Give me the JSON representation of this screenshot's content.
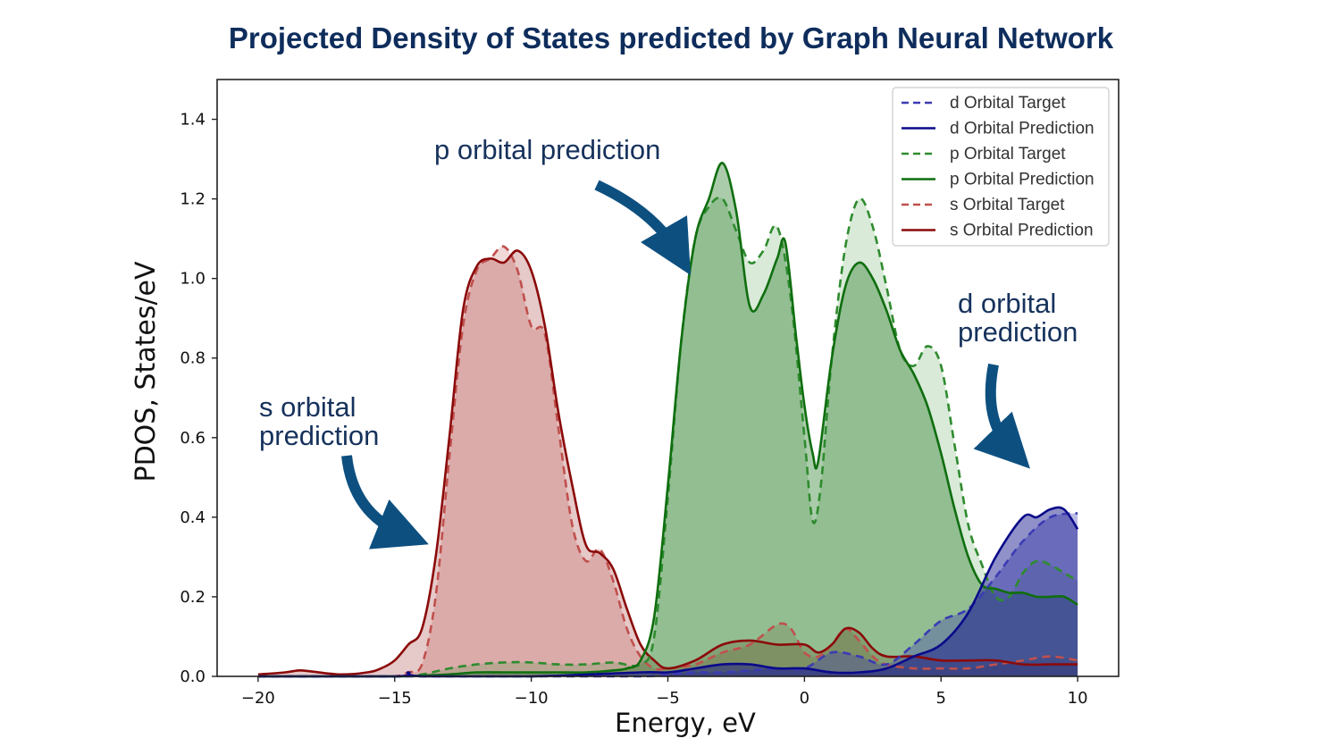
{
  "slide_title": "Projected Density of States predicted by Graph Neural Network",
  "annotations": {
    "p": [
      "p orbital prediction"
    ],
    "s": [
      "s orbital",
      "prediction"
    ],
    "d": [
      "d orbital",
      "prediction"
    ]
  },
  "colors": {
    "d_target": "#3b3bb3",
    "d_pred": "#0a0a8a",
    "p_target": "#2e8b2e",
    "p_pred": "#0f6e0f",
    "s_target": "#c0504d",
    "s_pred": "#8b0a0a",
    "arrow": "#0d5080",
    "title": "#0e2d5c"
  },
  "chart_data": {
    "type": "line",
    "title": "",
    "xlabel": "Energy, eV",
    "ylabel": "PDOS, States/eV",
    "xlim": [
      -21.5,
      11.5
    ],
    "ylim": [
      0,
      1.5
    ],
    "xticks": [
      -20,
      -15,
      -10,
      -5,
      0,
      5,
      10
    ],
    "yticks": [
      0.0,
      0.2,
      0.4,
      0.6,
      0.8,
      1.0,
      1.2,
      1.4
    ],
    "ytick_labels": [
      "0.0",
      "0.2",
      "0.4",
      "0.6",
      "0.8",
      "1.0",
      "1.2",
      "1.4"
    ],
    "xtick_labels": [
      "−20",
      "−15",
      "−10",
      "−5",
      "0",
      "5",
      "10"
    ],
    "legend_position": "top-right",
    "series": [
      {
        "name": "d Orbital Target",
        "key": "d_target",
        "style": "dashed",
        "x": [
          -20,
          -15,
          -10,
          -6,
          -5,
          -4,
          -3,
          -2,
          -1,
          0,
          1,
          2,
          3,
          4,
          5,
          6,
          7,
          8,
          9,
          10
        ],
        "y": [
          0,
          0,
          0,
          0,
          0.005,
          0.01,
          0.01,
          0.015,
          0.02,
          0.02,
          0.06,
          0.05,
          0.03,
          0.08,
          0.14,
          0.17,
          0.25,
          0.34,
          0.4,
          0.41
        ]
      },
      {
        "name": "d Orbital Prediction",
        "key": "d_pred",
        "style": "solid",
        "x": [
          -20,
          -15,
          -14.5,
          -14,
          -10,
          -6,
          -5,
          -4,
          -3,
          -2,
          -1,
          0,
          1,
          2,
          3,
          4,
          5,
          6,
          7,
          8,
          8.5,
          9,
          9.5,
          10
        ],
        "y": [
          0,
          0,
          0.01,
          0,
          0,
          0.01,
          0.01,
          0.02,
          0.03,
          0.03,
          0.02,
          0.02,
          0.01,
          0.01,
          0.02,
          0.05,
          0.08,
          0.16,
          0.3,
          0.4,
          0.4,
          0.42,
          0.42,
          0.37
        ]
      },
      {
        "name": "p Orbital Target",
        "key": "p_target",
        "style": "dashed",
        "x": [
          -20,
          -15,
          -14,
          -13,
          -12,
          -11,
          -10,
          -9,
          -8,
          -7,
          -6,
          -5.5,
          -5,
          -4.5,
          -4,
          -3.5,
          -3,
          -2.5,
          -2,
          -1.5,
          -1,
          -0.5,
          0,
          0.3,
          0.6,
          1,
          1.5,
          2,
          2.5,
          3,
          3.5,
          4,
          4.5,
          5,
          5.5,
          6,
          6.5,
          7,
          7.5,
          8,
          8.5,
          9,
          9.5,
          10
        ],
        "y": [
          0,
          0,
          0.005,
          0.02,
          0.03,
          0.035,
          0.035,
          0.03,
          0.03,
          0.035,
          0.03,
          0.1,
          0.45,
          0.85,
          1.1,
          1.18,
          1.2,
          1.12,
          1.04,
          1.07,
          1.13,
          0.95,
          0.6,
          0.39,
          0.48,
          0.8,
          1.08,
          1.2,
          1.13,
          0.98,
          0.82,
          0.78,
          0.83,
          0.78,
          0.58,
          0.38,
          0.28,
          0.2,
          0.2,
          0.26,
          0.29,
          0.28,
          0.26,
          0.24
        ]
      },
      {
        "name": "p Orbital Prediction",
        "key": "p_pred",
        "style": "solid",
        "x": [
          -20,
          -15,
          -14,
          -13,
          -12,
          -11,
          -10,
          -9,
          -8,
          -7,
          -6.5,
          -6,
          -5.5,
          -5,
          -4.5,
          -4,
          -3.5,
          -3,
          -2.5,
          -2,
          -1.5,
          -1,
          -0.7,
          -0.3,
          0,
          0.3,
          0.5,
          1,
          1.5,
          2,
          2.5,
          3,
          3.5,
          4,
          4.5,
          5,
          5.5,
          6,
          6.5,
          7,
          7.5,
          8,
          8.5,
          9,
          9.5,
          10
        ],
        "y": [
          0,
          0,
          0.002,
          0.005,
          0.01,
          0.01,
          0.01,
          0.01,
          0.01,
          0.015,
          0.02,
          0.04,
          0.15,
          0.48,
          0.85,
          1.1,
          1.2,
          1.29,
          1.17,
          0.93,
          0.96,
          1.05,
          1.09,
          0.85,
          0.68,
          0.56,
          0.54,
          0.8,
          0.98,
          1.04,
          1.0,
          0.92,
          0.82,
          0.76,
          0.68,
          0.56,
          0.42,
          0.3,
          0.23,
          0.22,
          0.21,
          0.21,
          0.2,
          0.2,
          0.2,
          0.18
        ]
      },
      {
        "name": "s Orbital Target",
        "key": "s_target",
        "style": "dashed",
        "x": [
          -20,
          -16,
          -15,
          -14.5,
          -14,
          -13.5,
          -13,
          -12.5,
          -12,
          -11.5,
          -11,
          -10.5,
          -10,
          -9.5,
          -9,
          -8.5,
          -8,
          -7.5,
          -7,
          -6.5,
          -6,
          -5.5,
          -5,
          -4,
          -3,
          -2,
          -1,
          -0.5,
          0,
          0.5,
          1,
          1.5,
          2,
          2.5,
          3,
          4,
          5,
          6,
          7,
          8,
          9,
          10
        ],
        "y": [
          0,
          0,
          0,
          0.01,
          0.03,
          0.2,
          0.55,
          0.88,
          1.02,
          1.05,
          1.08,
          1.02,
          0.88,
          0.86,
          0.62,
          0.38,
          0.29,
          0.32,
          0.24,
          0.12,
          0.05,
          0.02,
          0.02,
          0.03,
          0.06,
          0.08,
          0.13,
          0.12,
          0.06,
          0.05,
          0.08,
          0.12,
          0.09,
          0.05,
          0.03,
          0.02,
          0.02,
          0.02,
          0.03,
          0.04,
          0.05,
          0.04
        ]
      },
      {
        "name": "s Orbital Prediction",
        "key": "s_pred",
        "style": "solid",
        "x": [
          -20,
          -19,
          -18.5,
          -18,
          -17,
          -16,
          -15.5,
          -15,
          -14.5,
          -14,
          -13.5,
          -13,
          -12.5,
          -12,
          -11.5,
          -11,
          -10.5,
          -10,
          -9.5,
          -9,
          -8.5,
          -8,
          -7.5,
          -7,
          -6.5,
          -6,
          -5.5,
          -5,
          -4,
          -3,
          -2,
          -1,
          0,
          0.5,
          1,
          1.5,
          2,
          2.5,
          3,
          4,
          5,
          6,
          7,
          8,
          9,
          10
        ],
        "y": [
          0.005,
          0.01,
          0.015,
          0.012,
          0.005,
          0.01,
          0.02,
          0.04,
          0.08,
          0.12,
          0.3,
          0.6,
          0.92,
          1.03,
          1.05,
          1.04,
          1.07,
          1.02,
          0.88,
          0.66,
          0.48,
          0.33,
          0.31,
          0.27,
          0.17,
          0.08,
          0.04,
          0.02,
          0.04,
          0.08,
          0.09,
          0.08,
          0.08,
          0.06,
          0.08,
          0.12,
          0.11,
          0.07,
          0.05,
          0.05,
          0.04,
          0.04,
          0.04,
          0.03,
          0.03,
          0.03
        ]
      }
    ]
  }
}
